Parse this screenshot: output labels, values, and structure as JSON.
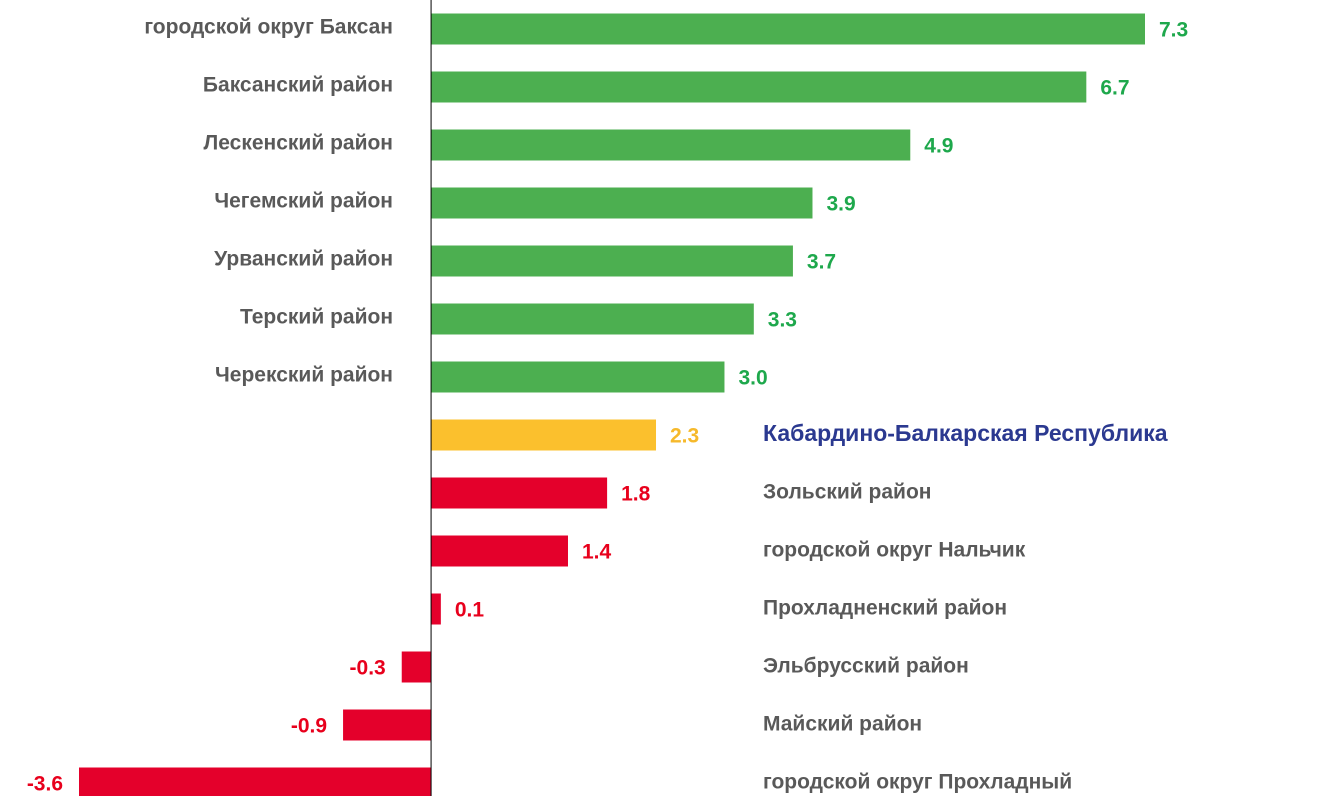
{
  "chart_data": {
    "type": "bar",
    "orientation": "horizontal",
    "categories": [
      "городской округ Баксан",
      "Баксанский район",
      "Лескенский район",
      "Чегемский район",
      "Урванский район",
      "Терский район",
      "Черекский район",
      "Кабардино-Балкарская Республика",
      "Зольский район",
      "городской округ Нальчик",
      "Прохладненский район",
      "Эльбрусский район",
      "Майский район",
      "городской округ Прохладный"
    ],
    "values": [
      7.3,
      6.7,
      4.9,
      3.9,
      3.7,
      3.3,
      3.0,
      2.3,
      1.8,
      1.4,
      0.1,
      -0.3,
      -0.9,
      -3.6
    ],
    "value_labels": [
      "7.3",
      "6.7",
      "4.9",
      "3.9",
      "3.7",
      "3.3",
      "3.0",
      "2.3",
      "1.8",
      "1.4",
      "0.1",
      "-0.3",
      "-0.9",
      "-3.6"
    ],
    "colors": [
      "#4caf50",
      "#4caf50",
      "#4caf50",
      "#4caf50",
      "#4caf50",
      "#4caf50",
      "#4caf50",
      "#fbc02d",
      "#e4002b",
      "#e4002b",
      "#e4002b",
      "#e4002b",
      "#e4002b",
      "#e4002b"
    ],
    "value_label_colors": [
      "#1ea84c",
      "#1ea84c",
      "#1ea84c",
      "#1ea84c",
      "#1ea84c",
      "#1ea84c",
      "#1ea84c",
      "#f6b92b",
      "#e8001c",
      "#e8001c",
      "#e8001c",
      "#e8001c",
      "#e8001c",
      "#e8001c"
    ],
    "category_label_colors": [
      "#595959",
      "#595959",
      "#595959",
      "#595959",
      "#595959",
      "#595959",
      "#595959",
      "#2b3990",
      "#595959",
      "#595959",
      "#595959",
      "#595959",
      "#595959",
      "#595959"
    ]
  }
}
